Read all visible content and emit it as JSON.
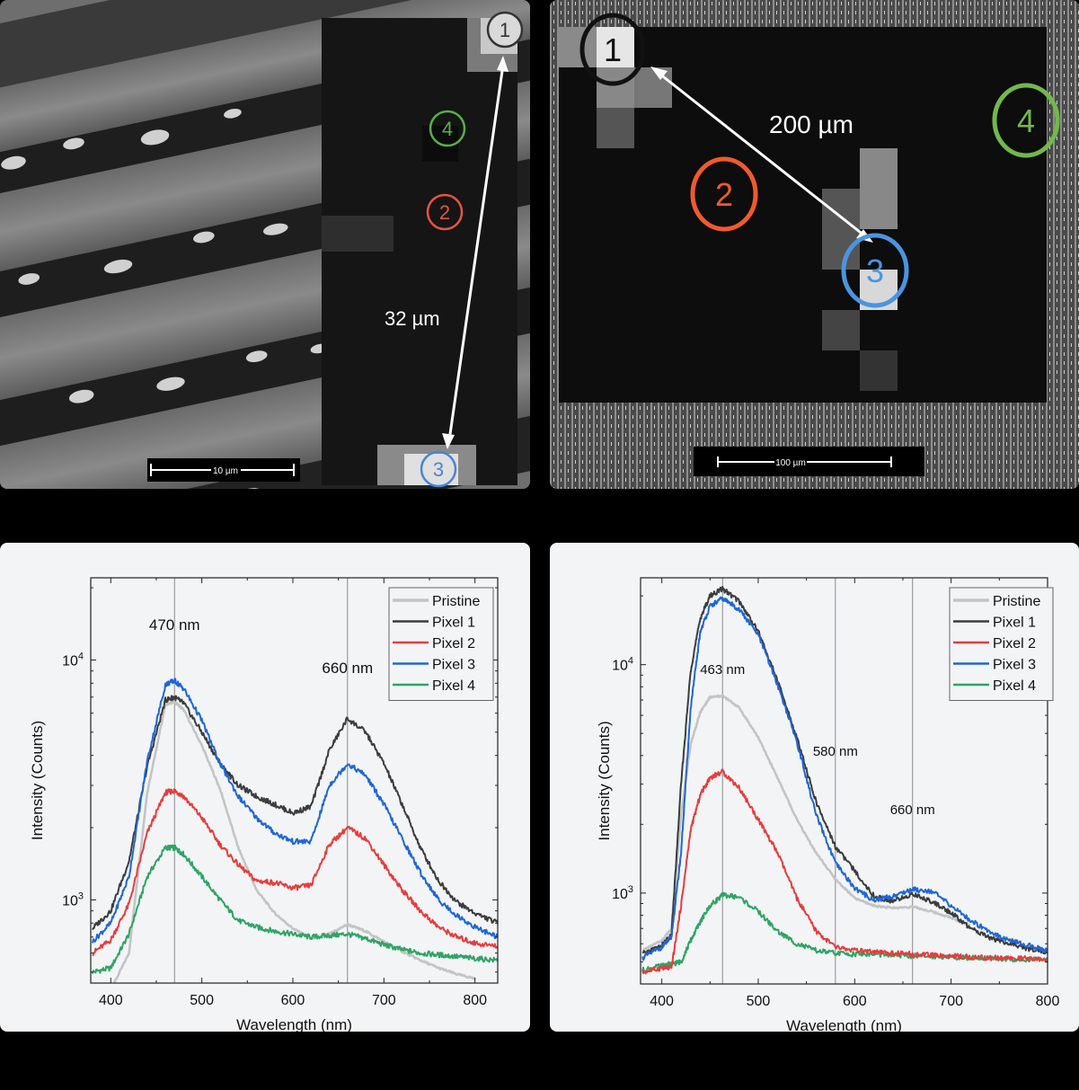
{
  "figure": {
    "panel_a": {
      "scale_bar": "10 µm",
      "distance_label": "32 µm",
      "markers": [
        {
          "id": "1",
          "color": "#3a3a3a"
        },
        {
          "id": "2",
          "color": "#e8533f"
        },
        {
          "id": "3",
          "color": "#4a84d6"
        },
        {
          "id": "4",
          "color": "#5aae4a"
        }
      ]
    },
    "panel_b": {
      "scale_bar": "100 µm",
      "distance_label": "200 µm",
      "markers": [
        {
          "id": "1",
          "color": "#111111"
        },
        {
          "id": "2",
          "color": "#f05a2c"
        },
        {
          "id": "3",
          "color": "#4a95e0"
        },
        {
          "id": "4",
          "color": "#72b84a"
        }
      ]
    }
  },
  "colors": {
    "pristine": "#c4c4c4",
    "pixel1": "#3c3c3c",
    "pixel2": "#e83c3c",
    "pixel3": "#1f66d8",
    "pixel4": "#2ea464"
  },
  "chart_data": [
    {
      "type": "line",
      "title": "",
      "xlabel": "Wavelength (nm)",
      "ylabel": "Intensity (Counts)",
      "yscale": "log",
      "xlim": [
        378,
        825
      ],
      "ylim": [
        450,
        22000
      ],
      "xticks": [
        400,
        500,
        600,
        700,
        800
      ],
      "yticks": [
        {
          "value": 1000,
          "label": "10³"
        },
        {
          "value": 10000,
          "label": "10⁴"
        }
      ],
      "legend": [
        "Pristine",
        "Pixel 1",
        "Pixel 2",
        "Pixel 3",
        "Pixel 4"
      ],
      "legend_position": "upper right",
      "grid": false,
      "annotations": [
        {
          "text": "470 nm",
          "x": 470,
          "vline": true
        },
        {
          "text": "660 nm",
          "x": 660,
          "vline": true
        }
      ],
      "x": [
        380,
        400,
        420,
        440,
        460,
        470,
        480,
        500,
        520,
        540,
        560,
        580,
        600,
        620,
        640,
        660,
        680,
        700,
        720,
        740,
        760,
        780,
        800,
        825
      ],
      "series": [
        {
          "name": "Pristine",
          "values": [
            420,
            420,
            600,
            2800,
            6500,
            6700,
            6200,
            4400,
            2900,
            1650,
            1100,
            880,
            760,
            690,
            720,
            790,
            740,
            670,
            610,
            560,
            520,
            490,
            470,
            null
          ]
        },
        {
          "name": "Pixel 1",
          "values": [
            760,
            900,
            1450,
            3600,
            6800,
            7000,
            6600,
            5000,
            3700,
            3000,
            2700,
            2500,
            2300,
            2450,
            4200,
            5700,
            5000,
            3700,
            2500,
            1650,
            1200,
            980,
            880,
            800
          ]
        },
        {
          "name": "Pixel 3",
          "values": [
            670,
            800,
            1250,
            3800,
            7900,
            8200,
            7600,
            5600,
            3700,
            2700,
            2200,
            1900,
            1750,
            1750,
            3000,
            3700,
            3300,
            2500,
            1800,
            1300,
            1000,
            860,
            770,
            700
          ]
        },
        {
          "name": "Pixel 2",
          "values": [
            600,
            680,
            960,
            1900,
            2800,
            2850,
            2700,
            2200,
            1700,
            1400,
            1200,
            1180,
            1120,
            1150,
            1700,
            2000,
            1800,
            1400,
            1100,
            900,
            770,
            700,
            660,
            640
          ]
        },
        {
          "name": "Pixel 4",
          "values": [
            500,
            520,
            720,
            1250,
            1650,
            1650,
            1550,
            1250,
            1000,
            820,
            770,
            740,
            720,
            700,
            710,
            720,
            690,
            650,
            620,
            600,
            590,
            580,
            570,
            560
          ]
        }
      ]
    },
    {
      "type": "line",
      "title": "",
      "xlabel": "Wavelength (nm)",
      "ylabel": "Intensity (Counts)",
      "yscale": "log",
      "xlim": [
        378,
        800
      ],
      "ylim": [
        400,
        24000
      ],
      "xticks": [
        400,
        500,
        600,
        700,
        800
      ],
      "yticks": [
        {
          "value": 1000,
          "label": "10³"
        },
        {
          "value": 10000,
          "label": "10⁴"
        }
      ],
      "legend": [
        "Pristine",
        "Pixel 1",
        "Pixel 2",
        "Pixel 3",
        "Pixel 4"
      ],
      "legend_position": "upper right",
      "grid": false,
      "annotations": [
        {
          "text": "463 nm",
          "x": 463,
          "vline": true
        },
        {
          "text": "580 nm",
          "x": 580,
          "vline": true
        },
        {
          "text": "660 nm",
          "x": 660,
          "vline": true
        }
      ],
      "x": [
        380,
        400,
        410,
        420,
        430,
        440,
        450,
        463,
        480,
        500,
        520,
        540,
        560,
        580,
        600,
        620,
        640,
        660,
        680,
        700,
        720,
        740,
        760,
        780,
        800
      ],
      "series": [
        {
          "name": "Pristine",
          "values": [
            560,
            620,
            700,
            2200,
            4500,
            6200,
            7200,
            7300,
            6500,
            4800,
            3200,
            2100,
            1500,
            1150,
            950,
            880,
            860,
            870,
            830,
            780,
            720,
            null,
            null,
            null,
            null
          ]
        },
        {
          "name": "Pixel 1",
          "values": [
            540,
            590,
            650,
            3000,
            9500,
            16000,
            20000,
            21500,
            19000,
            14000,
            8500,
            4800,
            2500,
            1600,
            1250,
            970,
            920,
            990,
            920,
            820,
            700,
            640,
            600,
            570,
            550
          ]
        },
        {
          "name": "Pixel 3",
          "values": [
            520,
            580,
            640,
            1500,
            6500,
            14000,
            18000,
            19500,
            17500,
            13500,
            8200,
            4600,
            2200,
            1350,
            1050,
            930,
            970,
            1040,
            1020,
            880,
            760,
            680,
            620,
            590,
            560
          ]
        },
        {
          "name": "Pixel 2",
          "values": [
            450,
            470,
            470,
            880,
            1900,
            2700,
            3200,
            3400,
            2900,
            2100,
            1500,
            950,
            680,
            580,
            560,
            550,
            545,
            540,
            535,
            530,
            525,
            520,
            520,
            515,
            510
          ]
        },
        {
          "name": "Pixel 4",
          "values": [
            460,
            480,
            490,
            500,
            620,
            750,
            880,
            980,
            960,
            830,
            680,
            600,
            560,
            545,
            540,
            540,
            535,
            530,
            530,
            525,
            520,
            520,
            515,
            510,
            510
          ]
        }
      ]
    }
  ]
}
